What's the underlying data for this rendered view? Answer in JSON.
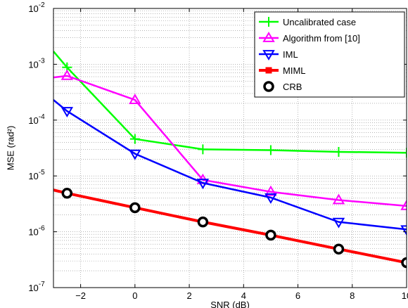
{
  "chart_data": {
    "type": "line",
    "xlabel": "SNR (dB)",
    "ylabel": "MSE (rad²)",
    "xlim": [
      -3,
      10
    ],
    "ylim": [
      1e-07,
      0.01
    ],
    "yscale": "log",
    "grid": true,
    "legend_position": "top-right",
    "x_ticks": [
      -2,
      0,
      2,
      4,
      6,
      8,
      10
    ],
    "y_ticks": [
      {
        "value": 1e-07,
        "base": "10",
        "exp": "-7"
      },
      {
        "value": 1e-06,
        "base": "10",
        "exp": "-6"
      },
      {
        "value": 1e-05,
        "base": "10",
        "exp": "-5"
      },
      {
        "value": 0.0001,
        "base": "10",
        "exp": "-4"
      },
      {
        "value": 0.001,
        "base": "10",
        "exp": "-3"
      },
      {
        "value": 0.01,
        "base": "10",
        "exp": "-2"
      }
    ],
    "series": [
      {
        "name": "Uncalibrated case",
        "color": "#00ff00",
        "marker": "plus",
        "x": [
          -3,
          -2.5,
          0,
          2.5,
          5,
          7.5,
          10
        ],
        "y": [
          0.0017,
          0.00088,
          4.6e-05,
          3e-05,
          2.9e-05,
          2.7e-05,
          2.6e-05
        ],
        "marker_x": [
          -2.5,
          0,
          2.5,
          5,
          7.5,
          10
        ]
      },
      {
        "name": "Algorithm from [10]",
        "color": "#ff00ff",
        "marker": "triangle-up",
        "x": [
          -3,
          -2.5,
          0,
          2.5,
          5,
          7.5,
          10
        ],
        "y": [
          0.00058,
          0.00062,
          0.00023,
          8.5e-06,
          5.2e-06,
          3.7e-06,
          2.9e-06
        ],
        "marker_x": [
          -2.5,
          0,
          2.5,
          5,
          7.5,
          10
        ]
      },
      {
        "name": "IML",
        "color": "#0000ff",
        "marker": "triangle-down",
        "x": [
          -3,
          -2.5,
          0,
          2.5,
          5,
          7.5,
          10
        ],
        "y": [
          0.00023,
          0.000145,
          2.5e-05,
          7.5e-06,
          4.1e-06,
          1.5e-06,
          1.1e-06
        ],
        "marker_x": [
          -2.5,
          0,
          2.5,
          5,
          7.5,
          10
        ]
      },
      {
        "name": "MIML",
        "color": "#ff0000",
        "marker": "square",
        "x": [
          -3,
          -2.5,
          0,
          2.5,
          5,
          7.5,
          10
        ],
        "y": [
          5.6e-06,
          4.9e-06,
          2.7e-06,
          1.5e-06,
          8.7e-07,
          4.9e-07,
          2.8e-07
        ],
        "marker_x": [
          -2.5,
          0,
          2.5,
          5,
          7.5,
          10
        ]
      },
      {
        "name": "CRB",
        "color": "#000000",
        "marker": "circle",
        "line": false,
        "x": [
          -2.5,
          0,
          2.5,
          5,
          7.5,
          10
        ],
        "y": [
          4.9e-06,
          2.7e-06,
          1.5e-06,
          8.7e-07,
          4.9e-07,
          2.8e-07
        ],
        "marker_x": [
          -2.5,
          0,
          2.5,
          5,
          7.5,
          10
        ]
      }
    ]
  }
}
